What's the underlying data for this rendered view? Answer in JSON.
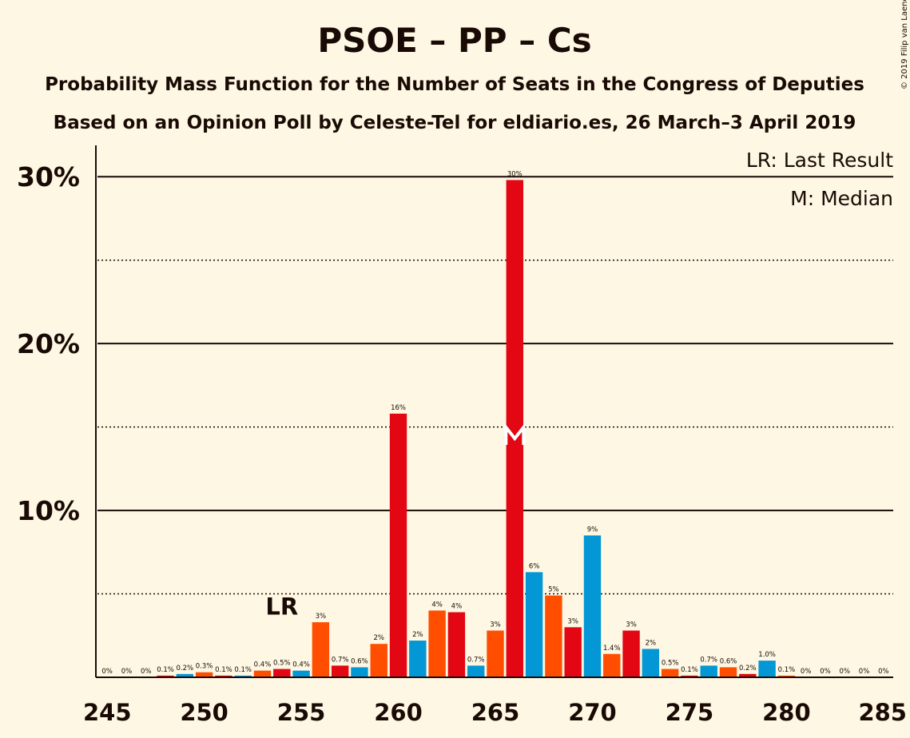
{
  "title": "PSOE – PP – Cs",
  "subtitle1": "Probability Mass Function for the Number of Seats in the Congress of Deputies",
  "subtitle2": "Based on an Opinion Poll by Celeste-Tel for eldiario.es, 26 March–3 April 2019",
  "copyright": "© 2019 Filip van Laenen",
  "legend": {
    "lr": "LR: Last Result",
    "median": "M: Median"
  },
  "lr_label": "LR",
  "median_label": "M",
  "colors": {
    "background": "#fdf7e3",
    "psoe": "#e30613",
    "pp": "#0397d6",
    "cs": "#ff4e00",
    "text": "#1a0a05"
  },
  "chart_data": {
    "type": "bar",
    "x": [
      245,
      246,
      247,
      248,
      249,
      250,
      251,
      252,
      253,
      254,
      255,
      256,
      257,
      258,
      259,
      260,
      261,
      262,
      263,
      264,
      265,
      266,
      267,
      268,
      269,
      270,
      271,
      272,
      273,
      274,
      275,
      276,
      277,
      278,
      279,
      280,
      281,
      282,
      283,
      284,
      285
    ],
    "values": [
      0,
      0,
      0,
      0.1,
      0.2,
      0.3,
      0.1,
      0.1,
      0.4,
      0.5,
      0.4,
      3.3,
      0.7,
      0.6,
      2.0,
      15.8,
      2.2,
      4.0,
      3.9,
      0.7,
      2.8,
      29.8,
      6.3,
      4.9,
      3.0,
      8.5,
      1.4,
      2.8,
      1.7,
      0.5,
      0.1,
      0.7,
      0.6,
      0.2,
      1.0,
      0.1,
      0,
      0,
      0,
      0,
      0
    ],
    "labels": [
      "0%",
      "0%",
      "0%",
      "0.1%",
      "0.2%",
      "0.3%",
      "0.1%",
      "0.1%",
      "0.4%",
      "0.5%",
      "0.4%",
      "3%",
      "0.7%",
      "0.6%",
      "2%",
      "16%",
      "2%",
      "4%",
      "4%",
      "0.7%",
      "3%",
      "30%",
      "6%",
      "5%",
      "3%",
      "9%",
      "1.4%",
      "3%",
      "2%",
      "0.5%",
      "0.1%",
      "0.7%",
      "0.6%",
      "0.2%",
      "1.0%",
      "0.1%",
      "0%",
      "0%",
      "0%",
      "0%",
      "0%"
    ],
    "color_cycle": [
      "psoe",
      "pp",
      "cs"
    ],
    "xticks": [
      245,
      250,
      255,
      260,
      265,
      270,
      275,
      280,
      285
    ],
    "xtick_labels": [
      "245",
      "250",
      "255",
      "260",
      "265",
      "270",
      "275",
      "280",
      "285"
    ],
    "yticks": [
      10,
      20,
      30
    ],
    "ytick_labels": [
      "10%",
      "20%",
      "30%"
    ],
    "dotted_gridlines": [
      5,
      15,
      25
    ],
    "ylim": [
      0,
      32.5
    ],
    "last_result": 254,
    "median": 266
  }
}
